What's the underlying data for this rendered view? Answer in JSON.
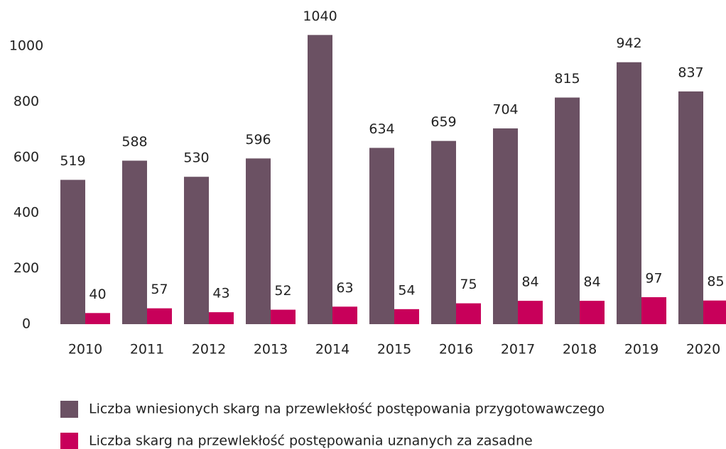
{
  "chart_data": {
    "type": "bar",
    "categories": [
      "2010",
      "2011",
      "2012",
      "2013",
      "2014",
      "2015",
      "2016",
      "2017",
      "2018",
      "2019",
      "2020"
    ],
    "series": [
      {
        "name": "Liczba wniesionych skarg na przewlekłość postępowania przygotowawczego",
        "color": "#6b5163",
        "values": [
          519,
          588,
          530,
          596,
          1040,
          634,
          659,
          704,
          815,
          942,
          837
        ]
      },
      {
        "name": "Liczba skarg na przewlekłość postępowania uznanych za zasadne",
        "color": "#c8005a",
        "values": [
          40,
          57,
          43,
          52,
          63,
          54,
          75,
          84,
          84,
          97,
          85
        ]
      }
    ],
    "ylim": [
      0,
      1100
    ],
    "yticks": [
      0,
      200,
      400,
      600,
      800,
      1000
    ],
    "grid": false,
    "legend": "bottom"
  }
}
